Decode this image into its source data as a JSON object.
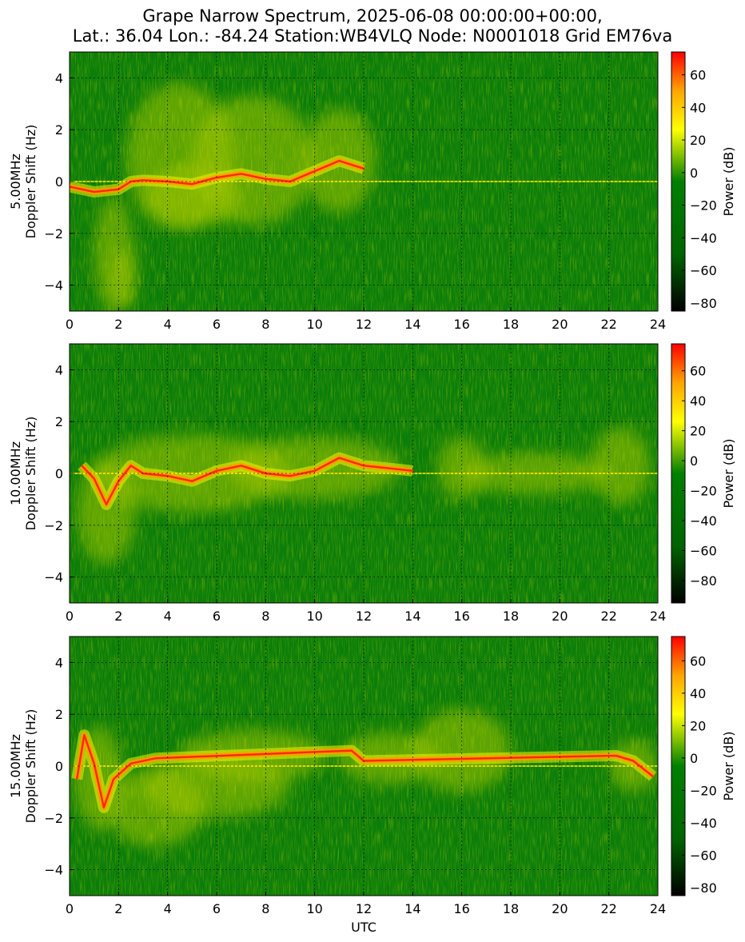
{
  "figure": {
    "title_line1": "Grape Narrow Spectrum, 2025-06-08 00:00:00+00:00,",
    "title_line2": "Lat.: 36.04 Lon.: -84.24 Station:WB4VLQ Node: N0001018 Grid EM76va",
    "xlabel": "UTC"
  },
  "colors": {
    "background_green": "#0a7d0a",
    "trace_yellow": "#f2f200",
    "trace_orange": "#ff9900",
    "trace_red": "#ff2a00",
    "colormap": [
      "#000000",
      "#006400",
      "#008000",
      "#ffff00",
      "#ffa500",
      "#ff0000"
    ]
  },
  "chart_data": [
    {
      "type": "heatmap",
      "band": "5.00MHz",
      "ylabel_top": "5.00MHz",
      "ylabel_bottom": "Doppler Shift (Hz)",
      "xlabel": "",
      "xlim": [
        0,
        24
      ],
      "ylim": [
        -5,
        5
      ],
      "xticks": [
        0,
        2,
        4,
        6,
        8,
        10,
        12,
        14,
        16,
        18,
        20,
        22,
        24
      ],
      "yticks": [
        -4,
        -2,
        0,
        2,
        4
      ],
      "grid": true,
      "colorbar": {
        "label": "Power (dB)",
        "range": [
          -85,
          74
        ],
        "ticks": [
          -80,
          -60,
          -40,
          -20,
          0,
          20,
          40,
          60
        ]
      },
      "trace": [
        [
          0,
          -0.2
        ],
        [
          1,
          -0.4
        ],
        [
          2,
          -0.3
        ],
        [
          2.5,
          0.0
        ],
        [
          3,
          0.05
        ],
        [
          4,
          0.0
        ],
        [
          5,
          -0.1
        ],
        [
          6,
          0.15
        ],
        [
          7,
          0.3
        ],
        [
          8,
          0.1
        ],
        [
          9,
          0.0
        ],
        [
          10,
          0.4
        ],
        [
          11,
          0.8
        ],
        [
          12,
          0.5
        ]
      ],
      "blobs": [
        [
          1.8,
          -2.8,
          0.8,
          2.2
        ],
        [
          4.5,
          1.0,
          2.2,
          2.8
        ],
        [
          7.5,
          0.8,
          2.5,
          2.5
        ],
        [
          11,
          0.8,
          1.5,
          2.0
        ],
        [
          5,
          -0.6,
          2.0,
          1.2
        ],
        [
          2.2,
          -3.8,
          0.5,
          1.2
        ]
      ]
    },
    {
      "type": "heatmap",
      "band": "10.00MHz",
      "ylabel_top": "10.00MHz",
      "ylabel_bottom": "Doppler Shift (Hz)",
      "xlabel": "",
      "xlim": [
        0,
        24
      ],
      "ylim": [
        -5,
        5
      ],
      "xticks": [
        0,
        2,
        4,
        6,
        8,
        10,
        12,
        14,
        16,
        18,
        20,
        22,
        24
      ],
      "yticks": [
        -4,
        -2,
        0,
        2,
        4
      ],
      "grid": true,
      "colorbar": {
        "label": "Power (dB)",
        "range": [
          -95,
          78
        ],
        "ticks": [
          -80,
          -60,
          -40,
          -20,
          0,
          20,
          40,
          60
        ]
      },
      "trace": [
        [
          0.5,
          0.3
        ],
        [
          1,
          -0.2
        ],
        [
          1.5,
          -1.2
        ],
        [
          2,
          -0.3
        ],
        [
          2.5,
          0.3
        ],
        [
          3,
          0.0
        ],
        [
          4,
          -0.1
        ],
        [
          5,
          -0.3
        ],
        [
          6,
          0.1
        ],
        [
          7,
          0.3
        ],
        [
          8,
          0.0
        ],
        [
          9,
          -0.1
        ],
        [
          10,
          0.1
        ],
        [
          11,
          0.6
        ],
        [
          12,
          0.3
        ],
        [
          13,
          0.2
        ],
        [
          14,
          0.1
        ]
      ],
      "blobs": [
        [
          1.5,
          -1.5,
          1.2,
          2.0
        ],
        [
          5,
          0.0,
          4.0,
          1.5
        ],
        [
          10,
          0.2,
          3.5,
          1.2
        ],
        [
          16,
          0.2,
          1.0,
          1.2
        ],
        [
          22.5,
          0.3,
          1.2,
          1.5
        ],
        [
          19,
          0.0,
          3.0,
          0.8
        ]
      ]
    },
    {
      "type": "heatmap",
      "band": "15.00MHz",
      "ylabel_top": "15.00MHz",
      "ylabel_bottom": "Doppler Shift (Hz)",
      "xlabel": "UTC",
      "xlim": [
        0,
        24
      ],
      "ylim": [
        -5,
        5
      ],
      "xticks": [
        0,
        2,
        4,
        6,
        8,
        10,
        12,
        14,
        16,
        18,
        20,
        22,
        24
      ],
      "yticks": [
        -4,
        -2,
        0,
        2,
        4
      ],
      "grid": true,
      "colorbar": {
        "label": "Power (dB)",
        "range": [
          -85,
          75
        ],
        "ticks": [
          -80,
          -60,
          -40,
          -20,
          0,
          20,
          40,
          60
        ]
      },
      "trace": [
        [
          0.3,
          -0.5
        ],
        [
          0.6,
          1.2
        ],
        [
          1,
          0.1
        ],
        [
          1.4,
          -1.6
        ],
        [
          1.8,
          -0.5
        ],
        [
          2.5,
          0.1
        ],
        [
          3.5,
          0.3
        ],
        [
          11.5,
          0.6
        ],
        [
          12,
          0.2
        ],
        [
          22.3,
          0.4
        ],
        [
          23,
          0.2
        ],
        [
          23.8,
          -0.4
        ]
      ],
      "blobs": [
        [
          1.2,
          -0.5,
          1.0,
          2.0
        ],
        [
          3.5,
          -1.6,
          2.0,
          1.5
        ],
        [
          7.5,
          0.4,
          3.0,
          1.0
        ],
        [
          16,
          0.6,
          2.0,
          1.6
        ],
        [
          13,
          0.3,
          2.0,
          1.0
        ],
        [
          23,
          0.0,
          1.0,
          1.0
        ],
        [
          6,
          -0.8,
          3.0,
          1.2
        ]
      ]
    }
  ]
}
